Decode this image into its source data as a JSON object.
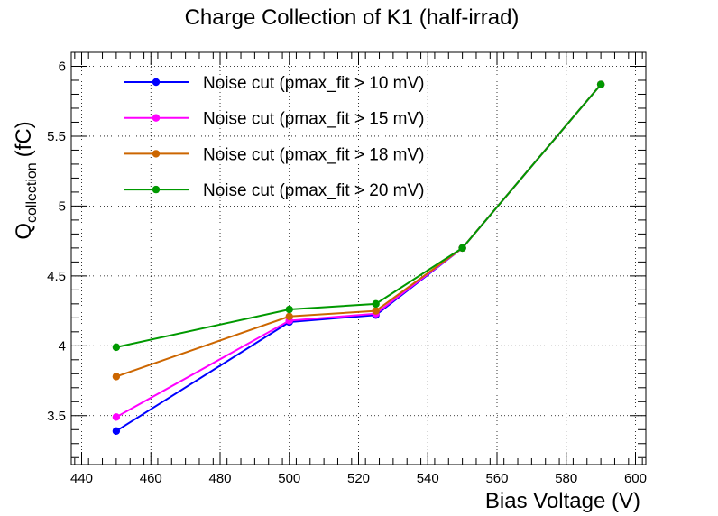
{
  "chart_data": {
    "type": "line",
    "title": "Charge Collection of K1 (half-irrad)",
    "xlabel": "Bias Voltage (V)",
    "ylabel_main": "Q",
    "ylabel_sub": "collection",
    "ylabel_unit": "(fC)",
    "xlim": [
      437,
      603
    ],
    "ylim": [
      3.15,
      6.1
    ],
    "xticks": [
      440,
      460,
      480,
      500,
      520,
      540,
      560,
      580,
      600
    ],
    "yticks": [
      3.5,
      4,
      4.5,
      5,
      5.5,
      6
    ],
    "ytick_labels": [
      "3.5",
      "4",
      "4.5",
      "5",
      "5.5",
      "6"
    ],
    "grid": true,
    "legend_position": "top-left",
    "series": [
      {
        "name": "Noise cut (pmax_fit > 10 mV)",
        "color": "#0000ff",
        "x": [
          450,
          500,
          525,
          550,
          590
        ],
        "y": [
          3.39,
          4.17,
          4.22,
          4.7,
          5.87
        ]
      },
      {
        "name": "Noise cut (pmax_fit > 15 mV)",
        "color": "#ff00ff",
        "x": [
          450,
          500,
          525,
          550,
          590
        ],
        "y": [
          3.49,
          4.18,
          4.23,
          4.7,
          5.87
        ]
      },
      {
        "name": "Noise cut (pmax_fit > 18 mV)",
        "color": "#cc6600",
        "x": [
          450,
          500,
          525,
          550,
          590
        ],
        "y": [
          3.78,
          4.21,
          4.25,
          4.7,
          5.87
        ]
      },
      {
        "name": "Noise cut (pmax_fit > 20 mV)",
        "color": "#009900",
        "x": [
          450,
          500,
          525,
          550,
          590
        ],
        "y": [
          3.99,
          4.26,
          4.3,
          4.7,
          5.87
        ]
      }
    ]
  }
}
